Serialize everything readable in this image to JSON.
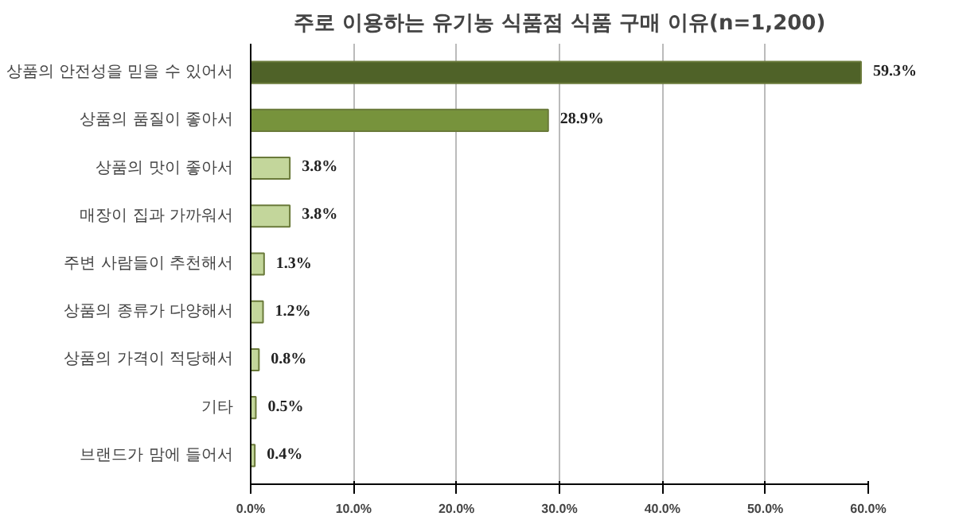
{
  "chart_data": {
    "type": "bar",
    "orientation": "horizontal",
    "title": "주로 이용하는 유기농 식품점 식품 구매 이유(n=1,200)",
    "categories": [
      "상품의 안전성을 믿을 수 있어서",
      "상품의 품질이 좋아서",
      "상품의 맛이 좋아서",
      "매장이 집과 가까워서",
      "주변 사람들이 추천해서",
      "상품의 종류가 다양해서",
      "상품의 가격이 적당해서",
      "기타",
      "브랜드가 맘에 들어서"
    ],
    "values": [
      59.3,
      28.9,
      3.8,
      3.8,
      1.3,
      1.2,
      0.8,
      0.5,
      0.4
    ],
    "colors": [
      "#4f6228",
      "#77933c",
      "#c3d69b",
      "#c3d69b",
      "#c3d69b",
      "#c3d69b",
      "#c3d69b",
      "#c3d69b",
      "#c3d69b"
    ],
    "value_labels": [
      "59.3%",
      "28.9%",
      "3.8%",
      "3.8%",
      "1.3%",
      "1.2%",
      "0.8%",
      "0.5%",
      "0.4%"
    ],
    "xlim": [
      0,
      60
    ],
    "xticks": [
      {
        "value": 0,
        "label": "0.0%"
      },
      {
        "value": 10,
        "label": "10.0%"
      },
      {
        "value": 20,
        "label": "20.0%"
      },
      {
        "value": 30,
        "label": "30.0%"
      },
      {
        "value": 40,
        "label": "40.0%"
      },
      {
        "value": 50,
        "label": "50.0%"
      },
      {
        "value": 60,
        "label": "60.0%"
      }
    ],
    "grid": "x"
  }
}
